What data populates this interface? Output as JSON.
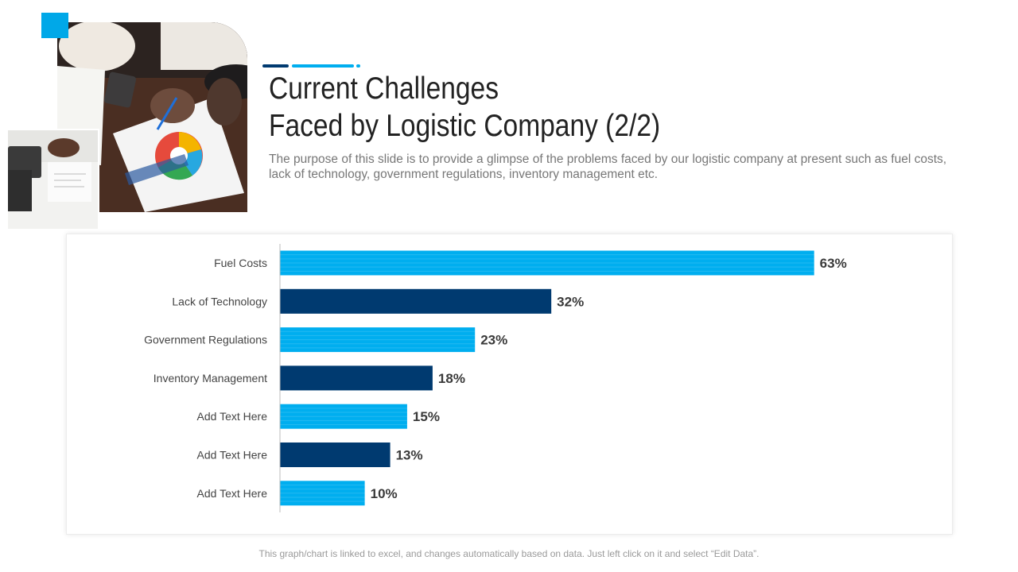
{
  "slide": {
    "title_line1": "Current Challenges",
    "title_line2": "Faced by Logistic Company (2/2)",
    "subtitle": "The purpose of this slide is to provide a glimpse of the problems faced by our logistic company at present such as fuel costs, lack of technology, government regulations, inventory management etc.",
    "footnote": "This graph/chart is linked to excel, and changes automatically based on data. Just left click on it and select “Edit Data”."
  },
  "colors": {
    "light_blue": "#00aeef",
    "dark_blue": "#003a70",
    "accent": "#00a8e8"
  },
  "chart_data": {
    "type": "bar",
    "orientation": "horizontal",
    "categories": [
      "Fuel Costs",
      "Lack of Technology",
      "Government Regulations",
      "Inventory Management",
      "Add Text Here",
      "Add Text Here",
      "Add Text Here"
    ],
    "values": [
      63,
      32,
      23,
      18,
      15,
      13,
      10
    ],
    "value_labels": [
      "63%",
      "32%",
      "23%",
      "18%",
      "15%",
      "13%",
      "10%"
    ],
    "bar_colors": [
      "#00aeef",
      "#003a70",
      "#00aeef",
      "#003a70",
      "#00aeef",
      "#003a70",
      "#00aeef"
    ],
    "unit": "%",
    "xlim": [
      0,
      65
    ],
    "grid": false,
    "legend": "none"
  }
}
